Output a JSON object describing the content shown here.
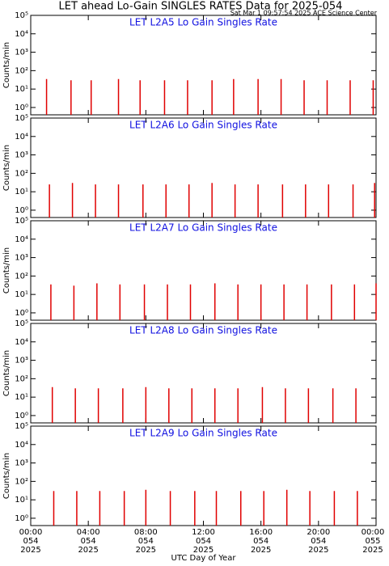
{
  "title": "LET ahead Lo-Gain SINGLES RATES Data for 2025-054",
  "subtitle": "Sat Mar  1 09:57:54 2025 ACE Science Center",
  "chart_data": [
    {
      "type": "bar",
      "title": "LET L2A5 Lo Gain Singles Rate",
      "ylabel": "Counts/min",
      "log": true,
      "color": "#e00000",
      "x": [
        1.1,
        2.8,
        4.2,
        6.1,
        7.6,
        9.3,
        10.9,
        12.6,
        14.1,
        15.8,
        17.4,
        19.0,
        20.6,
        22.2,
        23.8
      ],
      "values": [
        35,
        30,
        30,
        35,
        30,
        30,
        30,
        30,
        35,
        35,
        35,
        30,
        30,
        30,
        30
      ],
      "xlim": [
        0,
        24
      ],
      "xticks": [
        0,
        4,
        8,
        12,
        16,
        20,
        24
      ],
      "ylim": [
        0.4,
        100000
      ],
      "yticks": [
        {
          "value": 1,
          "label": "10⁰"
        },
        {
          "value": 10,
          "label": "10¹"
        },
        {
          "value": 100,
          "label": "10²"
        },
        {
          "value": 1000,
          "label": "10³"
        },
        {
          "value": 10000,
          "label": "10⁴"
        },
        {
          "value": 100000,
          "label": "10⁵"
        }
      ]
    },
    {
      "type": "bar",
      "title": "LET L2A6 Lo Gain Singles Rate",
      "ylabel": "Counts/min",
      "log": true,
      "color": "#e00000",
      "x": [
        1.3,
        2.9,
        4.5,
        6.1,
        7.8,
        9.4,
        11.0,
        12.6,
        14.2,
        15.8,
        17.5,
        19.1,
        20.7,
        22.4,
        23.9
      ],
      "values": [
        25,
        30,
        25,
        25,
        25,
        25,
        25,
        30,
        25,
        25,
        25,
        25,
        25,
        25,
        30
      ],
      "xlim": [
        0,
        24
      ],
      "xticks": [
        0,
        4,
        8,
        12,
        16,
        20,
        24
      ],
      "ylim": [
        0.4,
        100000
      ],
      "yticks": [
        {
          "value": 1,
          "label": "10⁰"
        },
        {
          "value": 10,
          "label": "10¹"
        },
        {
          "value": 100,
          "label": "10²"
        },
        {
          "value": 1000,
          "label": "10³"
        },
        {
          "value": 10000,
          "label": "10⁴"
        },
        {
          "value": 100000,
          "label": "10⁵"
        }
      ]
    },
    {
      "type": "bar",
      "title": "LET L2A7 Lo Gain Singles Rate",
      "ylabel": "Counts/min",
      "log": true,
      "color": "#e00000",
      "x": [
        1.4,
        3.0,
        4.6,
        6.2,
        7.9,
        9.5,
        11.1,
        12.8,
        14.4,
        16.0,
        17.6,
        19.2,
        20.9,
        22.5,
        24.0
      ],
      "values": [
        35,
        30,
        40,
        35,
        35,
        35,
        35,
        40,
        35,
        35,
        35,
        35,
        35,
        35,
        40
      ],
      "xlim": [
        0,
        24
      ],
      "xticks": [
        0,
        4,
        8,
        12,
        16,
        20,
        24
      ],
      "ylim": [
        0.4,
        100000
      ],
      "yticks": [
        {
          "value": 1,
          "label": "10⁰"
        },
        {
          "value": 10,
          "label": "10¹"
        },
        {
          "value": 100,
          "label": "10²"
        },
        {
          "value": 1000,
          "label": "10³"
        },
        {
          "value": 10000,
          "label": "10⁴"
        },
        {
          "value": 100000,
          "label": "10⁵"
        }
      ]
    },
    {
      "type": "bar",
      "title": "LET L2A8 Lo Gain Singles Rate",
      "ylabel": "Counts/min",
      "log": true,
      "color": "#e00000",
      "x": [
        1.5,
        3.1,
        4.7,
        6.4,
        8.0,
        9.6,
        11.2,
        12.8,
        14.4,
        16.1,
        17.7,
        19.3,
        21.0,
        22.6
      ],
      "values": [
        35,
        30,
        30,
        30,
        35,
        30,
        30,
        30,
        30,
        35,
        30,
        30,
        30,
        30
      ],
      "xlim": [
        0,
        24
      ],
      "xticks": [
        0,
        4,
        8,
        12,
        16,
        20,
        24
      ],
      "ylim": [
        0.4,
        100000
      ],
      "yticks": [
        {
          "value": 1,
          "label": "10⁰"
        },
        {
          "value": 10,
          "label": "10¹"
        },
        {
          "value": 100,
          "label": "10²"
        },
        {
          "value": 1000,
          "label": "10³"
        },
        {
          "value": 10000,
          "label": "10⁴"
        },
        {
          "value": 100000,
          "label": "10⁵"
        }
      ]
    },
    {
      "type": "bar",
      "title": "LET L2A9 Lo Gain Singles Rate",
      "ylabel": "Counts/min",
      "log": true,
      "color": "#e00000",
      "x": [
        1.6,
        3.2,
        4.8,
        6.5,
        8.0,
        9.7,
        11.4,
        12.9,
        14.6,
        16.2,
        17.8,
        19.4,
        21.1,
        22.7
      ],
      "values": [
        30,
        30,
        30,
        30,
        35,
        30,
        30,
        30,
        30,
        30,
        35,
        30,
        30,
        30
      ],
      "xlim": [
        0,
        24
      ],
      "xticks": [
        0,
        4,
        8,
        12,
        16,
        20,
        24
      ],
      "ylim": [
        0.4,
        100000
      ],
      "yticks": [
        {
          "value": 1,
          "label": "10⁰"
        },
        {
          "value": 10,
          "label": "10¹"
        },
        {
          "value": 100,
          "label": "10²"
        },
        {
          "value": 1000,
          "label": "10³"
        },
        {
          "value": 10000,
          "label": "10⁴"
        },
        {
          "value": 100000,
          "label": "10⁵"
        }
      ],
      "xlabel": "UTC Day of Year",
      "xtick_labels": [
        [
          "00:00",
          "054",
          "2025"
        ],
        [
          "04:00",
          "054",
          "2025"
        ],
        [
          "08:00",
          "054",
          "2025"
        ],
        [
          "12:00",
          "054",
          "2025"
        ],
        [
          "16:00",
          "054",
          "2025"
        ],
        [
          "20:00",
          "054",
          "2025"
        ],
        [
          "00:00",
          "055",
          "2025"
        ]
      ]
    }
  ]
}
